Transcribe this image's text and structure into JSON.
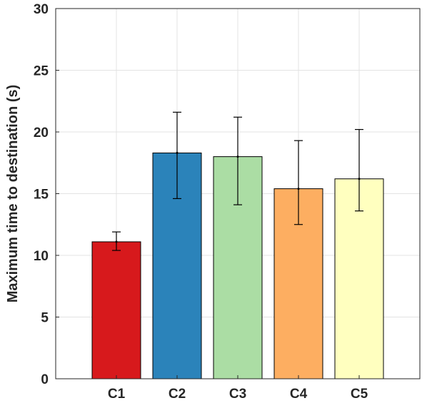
{
  "chart_data": {
    "type": "bar",
    "categories": [
      "C1",
      "C2",
      "C3",
      "C4",
      "C5"
    ],
    "values": [
      11.1,
      18.3,
      18.0,
      15.4,
      16.2
    ],
    "error_low": [
      10.4,
      14.6,
      14.1,
      12.5,
      13.6
    ],
    "error_high": [
      11.9,
      21.6,
      21.2,
      19.3,
      20.2
    ],
    "colors": [
      "#d7191c",
      "#2b83ba",
      "#abdda4",
      "#fdae61",
      "#ffffbf"
    ],
    "title": "",
    "xlabel": "",
    "ylabel": "Maximum time to destination (s)",
    "ylim": [
      0,
      30
    ],
    "yticks": [
      0,
      5,
      10,
      15,
      20,
      25,
      30
    ],
    "grid": true
  }
}
